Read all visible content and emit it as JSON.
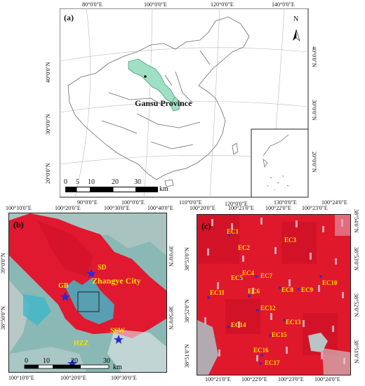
{
  "panel_a": {
    "label": "(a)",
    "province_label": "Gansu Province",
    "north": "N",
    "top_lon": [
      "80°0'0\"E",
      "100°0'0\"E",
      "120°0'0\"E",
      "140°0'0\"E"
    ],
    "bottom_lon": [
      "90°0'0\"E",
      "100°0'0\"E",
      "110°0'0\"E",
      "120°0'0\"E",
      "130°0'0\"E"
    ],
    "left_lat": [
      "40°0'0\"N",
      "30°0'0\"N",
      "20°0'0\"N"
    ],
    "right_lat": [
      "40°0'0\"N",
      "30°0'0\"N",
      "20°0'0\"N"
    ],
    "scale_ticks": [
      "0",
      "5",
      "10",
      "20",
      "30"
    ],
    "scale_unit": "km",
    "colors": {
      "province": "#9fe0c4",
      "boundary": "#777777"
    }
  },
  "panel_b": {
    "label": "(b)",
    "city_label": "Zhangye City",
    "sites": [
      "SD",
      "GB",
      "HZZ",
      "SSW"
    ],
    "top_lon": [
      "100°10'0\"E",
      "100°20'0\"E",
      "100°30'0\"E",
      "100°40'0\"E"
    ],
    "bottom_lon": [
      "100°10'0\"E",
      "100°20'0\"E",
      "100°30'0\"E"
    ],
    "left_lat": [
      "39°0'0\"N",
      "38°50'0\"N"
    ],
    "right_lat": [
      "39°0'0\"N",
      "38°50'0\"N"
    ],
    "scale_ticks": [
      "0",
      "10",
      "20",
      "30"
    ],
    "scale_unit": "km",
    "colors": {
      "vegetation": "#e01830",
      "desert": "#7fb8b8",
      "water": "#46b6c8",
      "site": "#2a2ad0"
    }
  },
  "panel_c": {
    "label": "(c)",
    "stations": [
      "EC1",
      "EC2",
      "EC3",
      "EC4",
      "EC5",
      "EC6",
      "EC7",
      "EC8",
      "EC9",
      "EC10",
      "EC11",
      "EC12",
      "EC13",
      "EC14",
      "EC15",
      "EC16",
      "EC17"
    ],
    "top_lon": [
      "100°20'0\"E",
      "100°21'0\"E",
      "100°22'0\"E",
      "100°23'0\"E",
      "100°24'0\"E"
    ],
    "bottom_lon": [
      "100°21'0\"E",
      "100°22'0\"E",
      "100°23'0\"E",
      "100°24'0\"E"
    ],
    "left_lat": [
      "38°53'0\"N",
      "38°52'0\"N",
      "38°51'0\"N"
    ],
    "right_lat": [
      "38°54'0\"N",
      "38°53'0\"N",
      "38°52'0\"N",
      "38°51'0\"N"
    ],
    "colors": {
      "label": "#ffe000",
      "station": "#2a2ad0"
    }
  }
}
